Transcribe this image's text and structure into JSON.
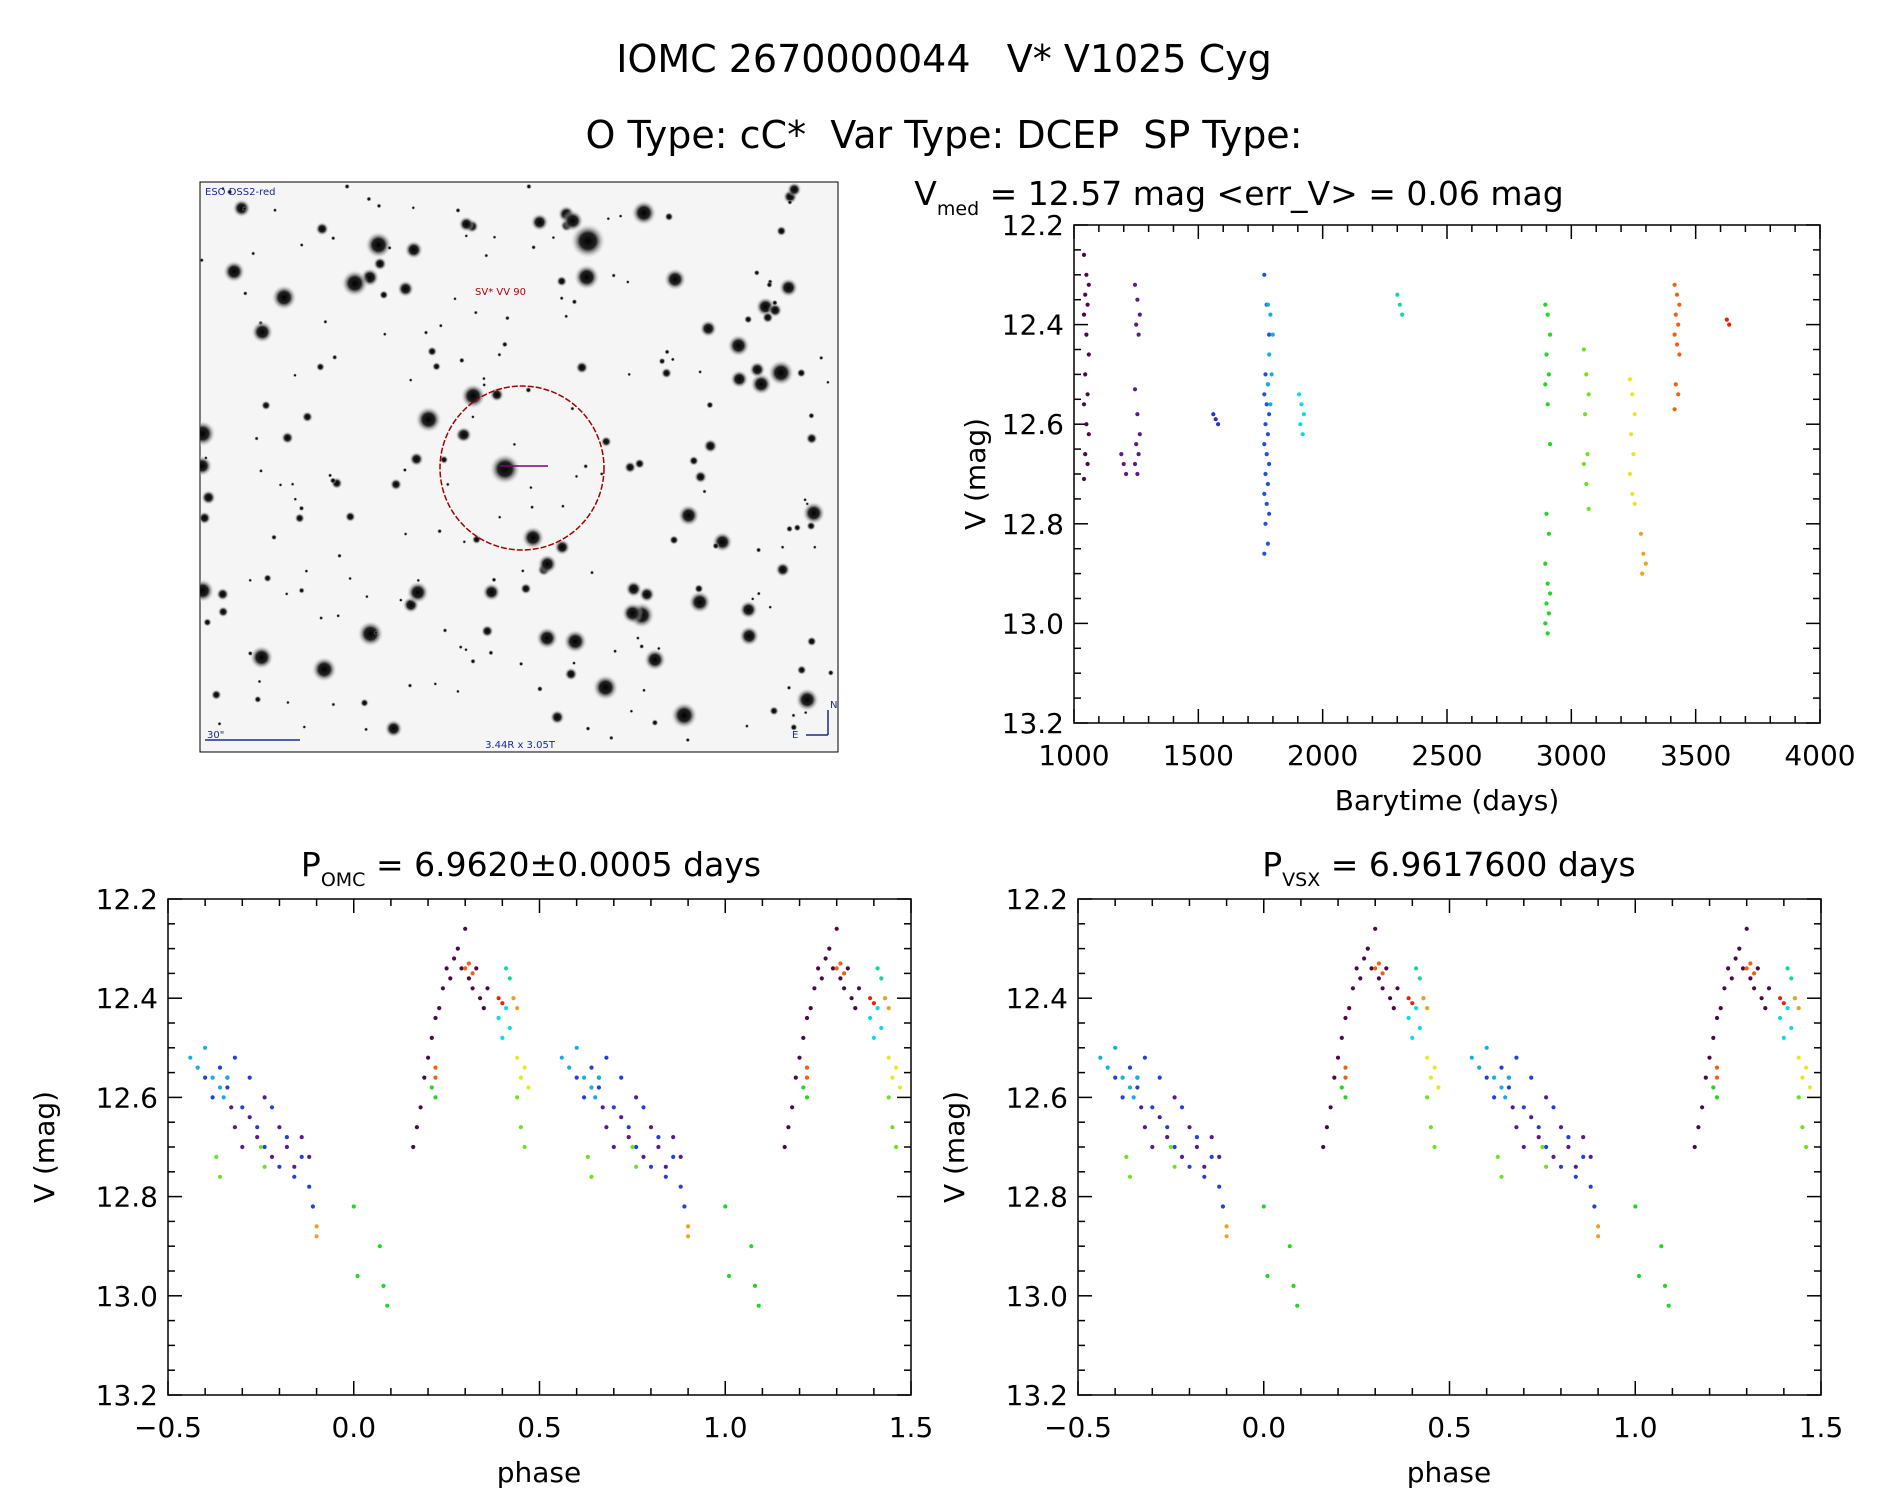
{
  "header": {
    "title": "IOMC 2670000044   V* V1025 Cyg",
    "subtitle": "O Type: cC*  Var Type: DCEP  SP Type:"
  },
  "finder": {
    "survey_label": "ESO DSS2-red",
    "object_label": "SV* VV 90",
    "scale_label": "30\"",
    "size_label": "3.44R x 3.05T",
    "north_label": "N",
    "east_label": "E"
  },
  "lightcurve_title": {
    "main": "V",
    "sub": "med",
    "rest": " = 12.57 mag <err_V> = 0.06 mag"
  },
  "phase1_title": {
    "main": "P",
    "sub": "OMC",
    "rest": " = 6.9620±0.0005 days"
  },
  "phase2_title": {
    "main": "P",
    "sub": "VSX",
    "rest": " = 6.9617600 days"
  },
  "chart_data": [
    {
      "type": "scatter",
      "id": "lightcurve",
      "xlabel": "Barytime (days)",
      "ylabel": "V (mag)",
      "xlim": [
        1000,
        4000
      ],
      "ylim": [
        13.2,
        12.2
      ],
      "xticks": [
        "1000",
        "1500",
        "2000",
        "2500",
        "3000",
        "3500",
        "4000"
      ],
      "yticks": [
        "12.2",
        "12.4",
        "12.6",
        "12.8",
        "13.0",
        "13.2"
      ],
      "groups": [
        {
          "t": 1050,
          "v": [
            12.26,
            12.3,
            12.32,
            12.34,
            12.36,
            12.38,
            12.42,
            12.46,
            12.5,
            12.54,
            12.56,
            12.6,
            12.62,
            12.66,
            12.68,
            12.71
          ],
          "color": "#4a0a4a"
        },
        {
          "t": 1200,
          "v": [
            12.66,
            12.68,
            12.7
          ],
          "color": "#5a1a8c"
        },
        {
          "t": 1255,
          "v": [
            12.32,
            12.35,
            12.38,
            12.4,
            12.42,
            12.53,
            12.58,
            12.62,
            12.64,
            12.66,
            12.68,
            12.7
          ],
          "color": "#5a1a8c"
        },
        {
          "t": 1570,
          "v": [
            12.58,
            12.59,
            12.6
          ],
          "color": "#2a30d0"
        },
        {
          "t": 1775,
          "v": [
            12.3,
            12.36,
            12.42,
            12.5,
            12.52,
            12.54,
            12.56,
            12.58,
            12.6,
            12.62,
            12.64,
            12.66,
            12.68,
            12.7,
            12.72,
            12.74,
            12.76,
            12.78,
            12.8,
            12.84,
            12.86
          ],
          "color": "#2050e0"
        },
        {
          "t": 1790,
          "v": [
            12.36,
            12.38,
            12.42,
            12.46,
            12.5,
            12.52,
            12.56
          ],
          "color": "#10b0e0"
        },
        {
          "t": 1915,
          "v": [
            12.54,
            12.56,
            12.58,
            12.6,
            12.62
          ],
          "color": "#10d8e8"
        },
        {
          "t": 2310,
          "v": [
            12.34,
            12.36,
            12.38
          ],
          "color": "#10d8a0"
        },
        {
          "t": 2905,
          "v": [
            12.36,
            12.38,
            12.42,
            12.46,
            12.5,
            12.52,
            12.56,
            12.64,
            12.78,
            12.82,
            12.88,
            12.92,
            12.94,
            12.96,
            12.98,
            13.0,
            13.02
          ],
          "color": "#20d820"
        },
        {
          "t": 3060,
          "v": [
            12.45,
            12.5,
            12.54,
            12.58,
            12.66,
            12.68,
            12.72,
            12.77
          ],
          "color": "#70e020"
        },
        {
          "t": 3245,
          "v": [
            12.51,
            12.54,
            12.58,
            12.62,
            12.66,
            12.7,
            12.74,
            12.76
          ],
          "color": "#e8e820"
        },
        {
          "t": 3290,
          "v": [
            12.82,
            12.86,
            12.88,
            12.9
          ],
          "color": "#f0a020"
        },
        {
          "t": 3425,
          "v": [
            12.32,
            12.34,
            12.36,
            12.38,
            12.4,
            12.42,
            12.44,
            12.46,
            12.52,
            12.54,
            12.57
          ],
          "color": "#f06010"
        },
        {
          "t": 3635,
          "v": [
            12.39,
            12.4
          ],
          "color": "#e82010"
        }
      ]
    },
    {
      "type": "scatter",
      "id": "phase-omc",
      "xlabel": "phase",
      "ylabel": "V (mag)",
      "xlim": [
        -0.5,
        1.5
      ],
      "ylim": [
        13.2,
        12.2
      ],
      "xticks": [
        "−0.5",
        "0.0",
        "0.5",
        "1.0",
        "1.5"
      ],
      "yticks": [
        "12.2",
        "12.4",
        "12.6",
        "12.8",
        "13.0",
        "13.2"
      ],
      "period_copies": [
        0,
        1
      ],
      "groups": [
        {
          "p": [
            0.16,
            0.17,
            0.18,
            0.19,
            0.2,
            0.21,
            0.22,
            0.23,
            0.24,
            0.25,
            0.26,
            0.27,
            0.28,
            0.29,
            0.3,
            0.31,
            0.32,
            0.33,
            0.34,
            0.35,
            0.36
          ],
          "v": [
            12.7,
            12.66,
            12.62,
            12.56,
            12.52,
            12.48,
            12.44,
            12.42,
            12.38,
            12.34,
            12.36,
            12.32,
            12.3,
            12.34,
            12.26,
            12.36,
            12.38,
            12.34,
            12.4,
            12.42,
            12.38
          ],
          "color": "#4a0a4a"
        },
        {
          "p": [
            -0.34,
            -0.33,
            -0.32,
            -0.3,
            -0.28,
            -0.26,
            -0.24,
            -0.22,
            -0.2,
            -0.18,
            -0.16,
            -0.14,
            -0.12
          ],
          "v": [
            12.56,
            12.62,
            12.66,
            12.7,
            12.64,
            12.68,
            12.6,
            12.72,
            12.66,
            12.7,
            12.74,
            12.68,
            12.72
          ],
          "color": "#5a1a8c"
        },
        {
          "p": [
            -0.4,
            -0.38,
            -0.36,
            -0.34,
            -0.32,
            -0.3,
            -0.28,
            -0.26,
            -0.24,
            -0.22,
            -0.2,
            -0.18,
            -0.16,
            -0.14,
            -0.12,
            -0.11
          ],
          "v": [
            12.56,
            12.6,
            12.54,
            12.58,
            12.52,
            12.62,
            12.56,
            12.66,
            12.7,
            12.62,
            12.74,
            12.68,
            12.76,
            12.72,
            12.78,
            12.82
          ],
          "color": "#2040d8"
        },
        {
          "p": [
            -0.44,
            -0.42,
            -0.4,
            -0.38,
            -0.36,
            -0.35,
            -0.34
          ],
          "v": [
            12.52,
            12.54,
            12.5,
            12.56,
            12.58,
            12.6,
            12.56
          ],
          "color": "#10b0e0"
        },
        {
          "p": [
            0.39,
            0.4,
            0.41,
            0.42
          ],
          "v": [
            12.44,
            12.48,
            12.42,
            12.46
          ],
          "color": "#10d8e8"
        },
        {
          "p": [
            0.41,
            0.42,
            0.43
          ],
          "v": [
            12.34,
            12.36,
            12.4
          ],
          "color": "#10d8a0"
        },
        {
          "p": [
            0.0,
            0.01,
            0.07,
            0.08,
            0.09,
            0.21,
            0.22
          ],
          "v": [
            12.82,
            12.96,
            12.9,
            12.98,
            13.02,
            12.58,
            12.6
          ],
          "color": "#20d820"
        },
        {
          "p": [
            -0.37,
            -0.36,
            -0.25,
            -0.24,
            0.44,
            0.45,
            0.46
          ],
          "v": [
            12.72,
            12.76,
            12.7,
            12.74,
            12.6,
            12.66,
            12.7
          ],
          "color": "#70e020"
        },
        {
          "p": [
            0.44,
            0.45,
            0.46,
            0.47
          ],
          "v": [
            12.52,
            12.56,
            12.54,
            12.58
          ],
          "color": "#e8e820"
        },
        {
          "p": [
            -0.1,
            -0.1,
            0.43,
            0.44
          ],
          "v": [
            12.86,
            12.88,
            12.4,
            12.42
          ],
          "color": "#f0a020"
        },
        {
          "p": [
            0.22,
            0.22,
            0.3,
            0.31,
            0.32
          ],
          "v": [
            12.54,
            12.56,
            12.34,
            12.33,
            12.35
          ],
          "color": "#f06010"
        },
        {
          "p": [
            0.39,
            0.4
          ],
          "v": [
            12.4,
            12.41
          ],
          "color": "#e82010"
        }
      ]
    },
    {
      "type": "scatter",
      "id": "phase-vsx",
      "xlabel": "phase",
      "ylabel": "V (mag)",
      "xlim": [
        -0.5,
        1.5
      ],
      "ylim": [
        13.2,
        12.2
      ],
      "xticks": [
        "−0.5",
        "0.0",
        "0.5",
        "1.0",
        "1.5"
      ],
      "yticks": [
        "12.2",
        "12.4",
        "12.6",
        "12.8",
        "13.0",
        "13.2"
      ],
      "period_copies": [
        0,
        1
      ],
      "same_points_as": "phase-omc"
    }
  ]
}
